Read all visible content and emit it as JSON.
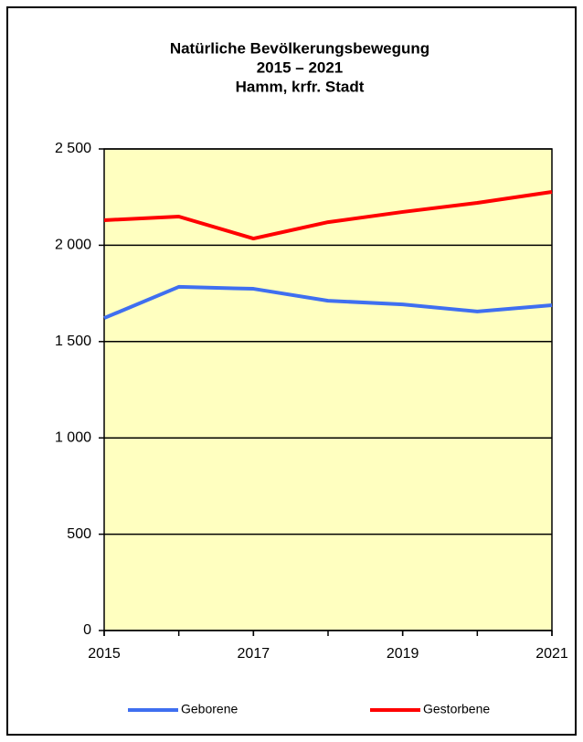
{
  "chart_data": {
    "type": "line",
    "title": [
      "Natürliche Bevölkerungsbewegung",
      "2015 – 2021",
      "Hamm, krfr. Stadt"
    ],
    "x": [
      2015,
      2016,
      2017,
      2018,
      2019,
      2020,
      2021
    ],
    "series": [
      {
        "name": "Geborene",
        "color": "#3f6ff0",
        "values": [
          1622,
          1784,
          1774,
          1712,
          1693,
          1656,
          1689
        ]
      },
      {
        "name": "Gestorbene",
        "color": "#ff0000",
        "values": [
          2130,
          2149,
          2035,
          2120,
          2173,
          2220,
          2277
        ]
      }
    ],
    "xlim": [
      2015,
      2021
    ],
    "xticks": [
      2015,
      2017,
      2019,
      2021
    ],
    "ylim": [
      0,
      2500
    ],
    "yticks": [
      0,
      500,
      {
        "value": 1000,
        "label": "1 000"
      },
      {
        "value": 1500,
        "label": "1 500"
      },
      {
        "value": 2000,
        "label": "2 000"
      },
      {
        "value": 2500,
        "label": "2 500"
      }
    ],
    "grid": true,
    "legend": "bottom",
    "plot_background": "#ffffc0"
  }
}
